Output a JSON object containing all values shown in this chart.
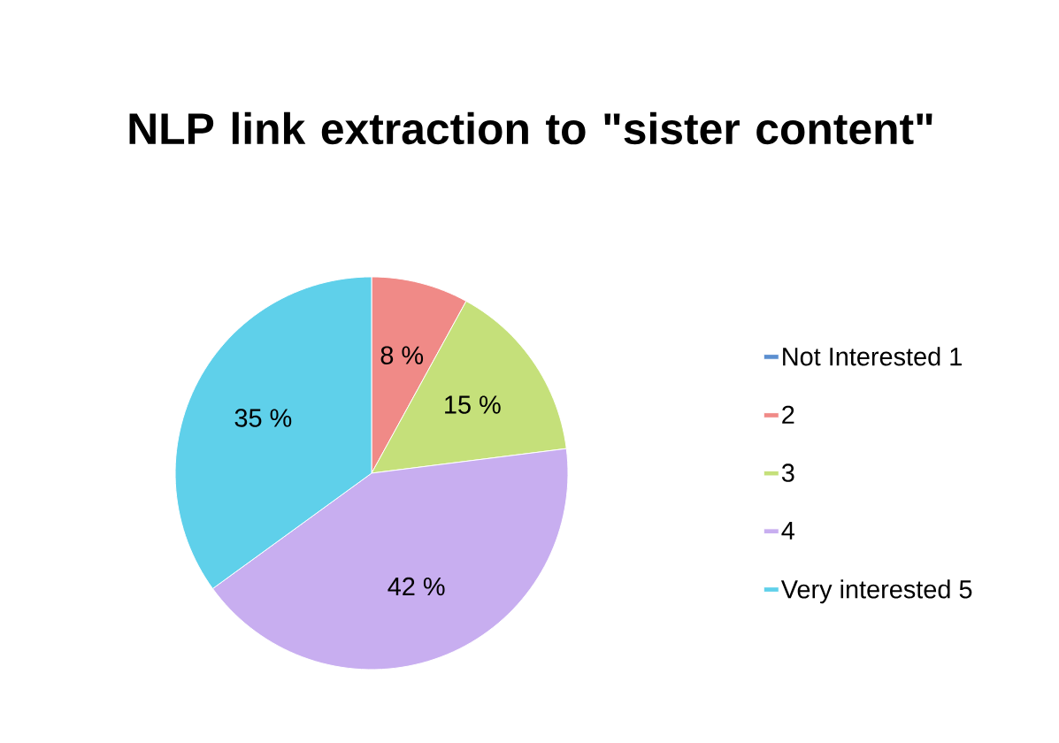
{
  "chart_data": {
    "type": "pie",
    "title": "NLP link extraction to \"sister content\"",
    "categories": [
      "Not Interested 1",
      "2",
      "3",
      "4",
      "Very interested 5"
    ],
    "values": [
      0,
      8,
      15,
      42,
      35
    ],
    "colors": [
      "#5b8fd0",
      "#f08a87",
      "#c5e07a",
      "#c8aef0",
      "#5fd0ea"
    ],
    "value_labels": [
      null,
      "8 %",
      "15 %",
      "42 %",
      "35 %"
    ],
    "legend": "right"
  }
}
